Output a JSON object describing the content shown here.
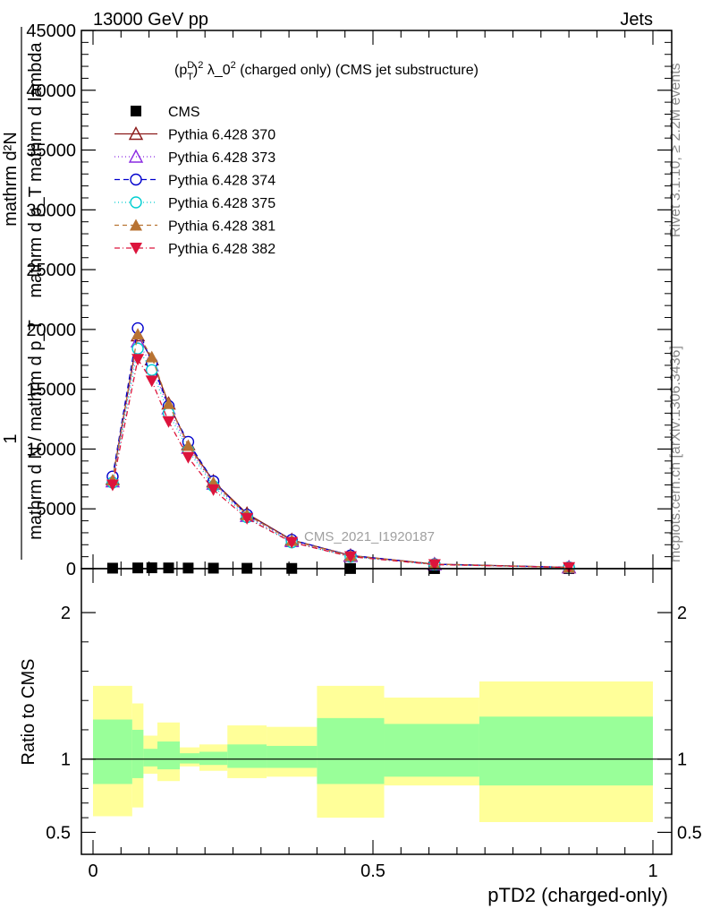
{
  "header": {
    "left": "13000 GeV pp",
    "right": "Jets"
  },
  "side_labels": {
    "rivet": "Rivet 3.1.10, ≥ 2.2M events",
    "mcplots": "mcplots.cern.ch [arXiv:1306.3436]"
  },
  "watermark": "CMS_2021_I1920187",
  "chart_data": [
    {
      "type": "line",
      "title_parts": {
        "pre": "(p",
        "sup1": "D",
        "sub1": "T",
        "close": ")",
        "sup2": "2",
        "mid": " λ_0",
        "sup3": "2",
        "post": " (charged only) (CMS jet substructure)"
      },
      "ylabel_parts": {
        "num": "1",
        "den": "mathrm d N / mathrm d p_T",
        "num2": "mathrm d²N",
        "den2": "mathrm d p_T mathrm d lambda"
      },
      "xlim": [
        0,
        1
      ],
      "ylim": [
        0,
        45000
      ],
      "y_ticks": [
        0,
        5000,
        10000,
        15000,
        20000,
        25000,
        30000,
        35000,
        40000,
        45000
      ],
      "y_tick_labels": [
        "0",
        "5000",
        "10000",
        "15000",
        "20000",
        "25000",
        "30000",
        "35000",
        "40000",
        "45000"
      ],
      "legend_position": "top-left",
      "x": [
        0.035,
        0.08,
        0.105,
        0.135,
        0.17,
        0.215,
        0.275,
        0.355,
        0.46,
        0.61,
        0.85
      ],
      "series": [
        {
          "name": "CMS",
          "color": "#000000",
          "marker": "square",
          "values": [
            40,
            60,
            70,
            60,
            50,
            40,
            30,
            20,
            10,
            3,
            1
          ]
        },
        {
          "name": "Pythia 6.428 370",
          "color": "#8b1a1a",
          "marker": "triangle-open",
          "dash": "",
          "values": [
            7500,
            19500,
            17500,
            13800,
            10400,
            7300,
            4600,
            2400,
            1100,
            380,
            110
          ]
        },
        {
          "name": "Pythia 6.428 373",
          "color": "#8a2be2",
          "marker": "triangle-open",
          "dash": "1,3",
          "values": [
            7300,
            19000,
            17000,
            13400,
            10100,
            7100,
            4400,
            2300,
            1050,
            360,
            105
          ]
        },
        {
          "name": "Pythia 6.428 374",
          "color": "#0000cd",
          "marker": "circle-open",
          "dash": "6,4",
          "values": [
            7700,
            20100,
            17200,
            13600,
            10600,
            7300,
            4500,
            2400,
            1100,
            370,
            108
          ]
        },
        {
          "name": "Pythia 6.428 375",
          "color": "#00ced1",
          "marker": "circle-open",
          "dash": "1,3",
          "values": [
            7200,
            18400,
            16600,
            13000,
            9900,
            6900,
            4300,
            2200,
            1000,
            350,
            100
          ]
        },
        {
          "name": "Pythia 6.428 381",
          "color": "#b87333",
          "marker": "triangle",
          "dash": "5,4",
          "values": [
            7400,
            19600,
            17700,
            13800,
            10300,
            7200,
            4500,
            2350,
            1080,
            370,
            107
          ]
        },
        {
          "name": "Pythia 6.428 382",
          "color": "#dc143c",
          "marker": "triangle-down",
          "dash": "6,3,1,3",
          "values": [
            7000,
            17500,
            15700,
            12300,
            9300,
            6600,
            4200,
            2200,
            1000,
            340,
            98
          ]
        }
      ]
    },
    {
      "type": "area",
      "ylabel": "Ratio to CMS",
      "xlabel": "pTD2 (charged-only)",
      "xlim": [
        0,
        1
      ],
      "ylim": [
        0.35,
        2.3
      ],
      "x_ticks": [
        0,
        0.5,
        1
      ],
      "x_tick_labels": [
        "0",
        "0.5",
        "1"
      ],
      "y_ticks": [
        0.5,
        1,
        2
      ],
      "y_tick_labels": [
        "0.5",
        "1",
        "2"
      ],
      "reference": 1,
      "band_edges": [
        0,
        0.07,
        0.09,
        0.115,
        0.155,
        0.19,
        0.24,
        0.31,
        0.4,
        0.52,
        0.69,
        1.0
      ],
      "yellow_band": {
        "color": "#ffff99",
        "low": [
          0.61,
          0.67,
          0.9,
          0.85,
          0.95,
          0.92,
          0.87,
          0.88,
          0.6,
          0.82,
          0.57
        ],
        "high": [
          1.5,
          1.38,
          1.16,
          1.25,
          1.08,
          1.1,
          1.23,
          1.22,
          1.5,
          1.42,
          1.53
        ]
      },
      "green_band": {
        "color": "#99ff99",
        "low": [
          0.83,
          0.87,
          0.95,
          0.93,
          0.97,
          0.96,
          0.94,
          0.94,
          0.83,
          0.88,
          0.82
        ],
        "high": [
          1.27,
          1.2,
          1.07,
          1.12,
          1.04,
          1.05,
          1.1,
          1.09,
          1.28,
          1.24,
          1.29
        ]
      }
    }
  ]
}
